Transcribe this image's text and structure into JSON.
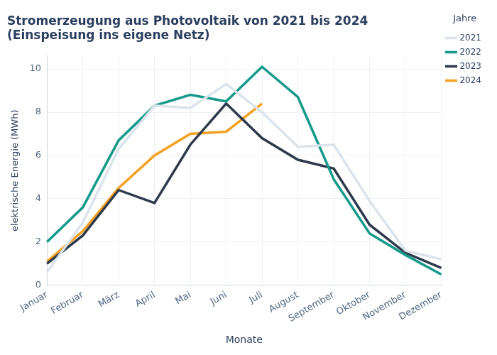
{
  "chart_data": {
    "type": "line",
    "title": "Stromerzeugung aus Photovoltaik von 2021 bis 2024",
    "subtitle": "(Einspeisung ins eigene Netz)",
    "x_label": "Monate",
    "y_label": "elektrische Energie (MWh)",
    "legend_title": "Jahre",
    "categories": [
      "Januar",
      "Februar",
      "März",
      "April",
      "Mai",
      "Juni",
      "Juli",
      "August",
      "September",
      "Oktober",
      "November",
      "Dezember"
    ],
    "series": [
      {
        "name": "2021",
        "color": "#dbe4ea",
        "values": [
          0.6,
          2.9,
          6.3,
          8.3,
          8.2,
          9.3,
          8.0,
          6.4,
          6.5,
          3.9,
          1.6,
          1.2
        ]
      },
      {
        "name": "2022",
        "color": "#14998a",
        "values": [
          2.0,
          3.6,
          6.7,
          8.3,
          8.8,
          8.5,
          10.1,
          8.7,
          4.9,
          2.4,
          1.4,
          0.5
        ]
      },
      {
        "name": "2023",
        "color": "#2e3a4b",
        "values": [
          1.0,
          2.3,
          4.4,
          3.8,
          6.5,
          8.4,
          6.8,
          5.8,
          5.4,
          2.8,
          1.5,
          0.8
        ]
      },
      {
        "name": "2024",
        "color": "#f4a124",
        "values": [
          1.1,
          2.5,
          4.5,
          6.0,
          7.0,
          7.1,
          8.4,
          null,
          null,
          null,
          null,
          null
        ]
      }
    ],
    "ylim": [
      0,
      10.6
    ],
    "yticks": [
      0,
      2,
      4,
      6,
      8,
      10
    ],
    "grid": true,
    "legend": "top-right"
  }
}
